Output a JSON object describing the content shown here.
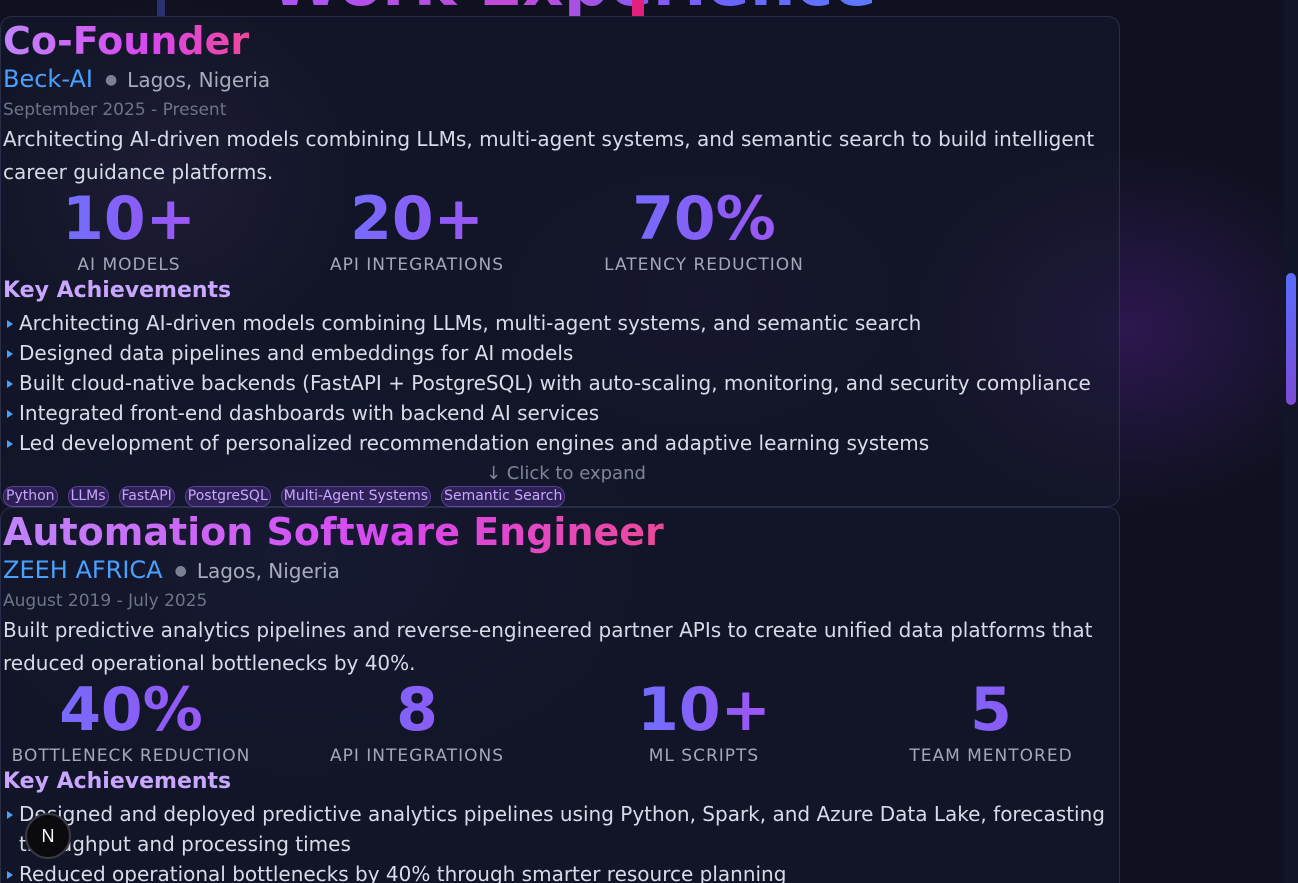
{
  "section": {
    "heading": "Work Experience"
  },
  "experiences": [
    {
      "title": "Co-Founder",
      "company": "Beck-AI",
      "location": "Lagos, Nigeria",
      "dates": "September 2025 - Present",
      "summary": "Architecting AI-driven models combining LLMs, multi-agent systems, and semantic search to build intelligent career guidance platforms.",
      "metrics": [
        {
          "value": "10+",
          "label": "AI MODELS"
        },
        {
          "value": "20+",
          "label": "API INTEGRATIONS"
        },
        {
          "value": "70%",
          "label": "LATENCY REDUCTION"
        }
      ],
      "achievements_heading": "Key Achievements",
      "achievements": [
        "Architecting AI-driven models combining LLMs, multi-agent systems, and semantic search",
        "Designed data pipelines and embeddings for AI models",
        "Built cloud-native backends (FastAPI + PostgreSQL) with auto-scaling, monitoring, and security compliance",
        "Integrated front-end dashboards with backend AI services",
        "Led development of personalized recommendation engines and adaptive learning systems"
      ],
      "expand_hint": "↓ Click to expand",
      "tags": [
        "Python",
        "LLMs",
        "FastAPI",
        "PostgreSQL",
        "Multi-Agent Systems",
        "Semantic Search"
      ]
    },
    {
      "title": "Automation Software Engineer",
      "company": "ZEEH AFRICA",
      "location": "Lagos, Nigeria",
      "dates": "August 2019 - July 2025",
      "summary": "Built predictive analytics pipelines and reverse-engineered partner APIs to create unified data platforms that reduced operational bottlenecks by 40%.",
      "metrics": [
        {
          "value": "40%",
          "label": "BOTTLENECK REDUCTION"
        },
        {
          "value": "8",
          "label": "API INTEGRATIONS"
        },
        {
          "value": "10+",
          "label": "ML SCRIPTS"
        },
        {
          "value": "5",
          "label": "TEAM MENTORED"
        }
      ],
      "achievements_heading": "Key Achievements",
      "achievements": [
        "Designed and deployed predictive analytics pipelines using Python, Spark, and Azure Data Lake, forecasting throughput and processing times",
        "Reduced operational bottlenecks by 40% through smarter resource planning"
      ]
    }
  ],
  "overlay": {
    "badge_letter": "N"
  },
  "colors": {
    "accent_blue": "#4aa0ff",
    "accent_purple": "#a855f7",
    "accent_pink": "#ec4899",
    "background": "#0f1120"
  }
}
